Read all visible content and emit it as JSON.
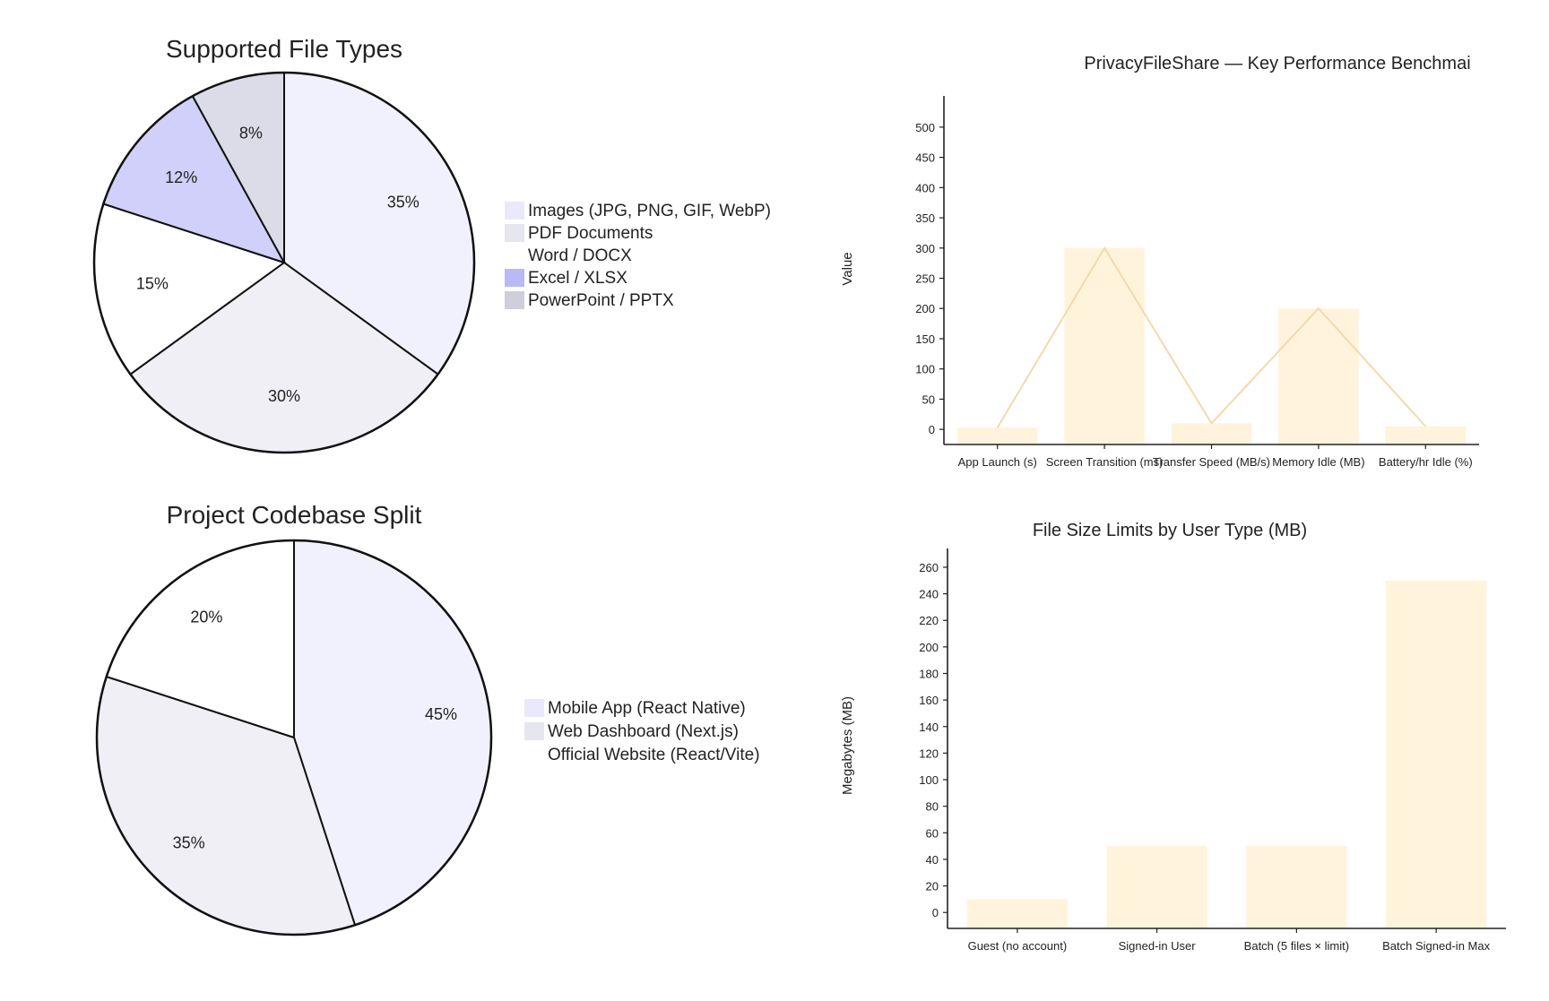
{
  "chart_data": [
    {
      "type": "pie",
      "title": "Supported File Types",
      "labels": [
        "Images (JPG, PNG, GIF, WebP)",
        "PDF Documents",
        "Word / DOCX",
        "Excel / XLSX",
        "PowerPoint / PPTX"
      ],
      "values": [
        35,
        30,
        15,
        12,
        8
      ],
      "value_labels": [
        "35%",
        "30%",
        "15%",
        "12%",
        "8%"
      ],
      "colors": [
        "#f1f1fd",
        "#efeff5",
        "#ffffff",
        "#d0d0fb",
        "#dcdce8"
      ],
      "legend_colors": [
        "#e9e9fb",
        "#e6e6ee",
        "#ffffff",
        "#b9b9f5",
        "#cfcfdb"
      ],
      "legend": "right"
    },
    {
      "type": "bar",
      "title": "PrivacyFileShare — Key Performance Benchmai",
      "categories": [
        "App Launch (s)",
        "Screen Transition (ms)",
        "Transfer Speed (MB/s)",
        "Memory Idle (MB)",
        "Battery/hr Idle (%)"
      ],
      "values": [
        3,
        300,
        10,
        200,
        5
      ],
      "line_overlay": [
        3,
        300,
        10,
        200,
        5
      ],
      "ylabel": "Value",
      "ylim": [
        -25,
        525
      ],
      "yticks": [
        0,
        50,
        100,
        150,
        200,
        250,
        300,
        350,
        400,
        450,
        500
      ],
      "bar_color": "#fff3dc",
      "line_color": "#f3d9ad",
      "grid": false
    },
    {
      "type": "pie",
      "title": "Project Codebase Split",
      "labels": [
        "Mobile App (React Native)",
        "Web Dashboard (Next.js)",
        "Official Website (React/Vite)"
      ],
      "values": [
        45,
        35,
        20
      ],
      "value_labels": [
        "45%",
        "35%",
        "20%"
      ],
      "colors": [
        "#f1f1fd",
        "#efeff5",
        "#ffffff"
      ],
      "legend_colors": [
        "#e9e9fb",
        "#e6e6ee",
        "#ffffff"
      ],
      "legend": "right"
    },
    {
      "type": "bar",
      "title": "File Size Limits by User Type (MB)",
      "categories": [
        "Guest (no account)",
        "Signed-in User",
        "Batch (5 files × limit)",
        "Batch Signed-in Max"
      ],
      "values": [
        10,
        50,
        50,
        250
      ],
      "ylabel": "Megabytes (MB)",
      "ylim": [
        -12,
        262
      ],
      "yticks": [
        0,
        20,
        40,
        60,
        80,
        100,
        120,
        140,
        160,
        180,
        200,
        220,
        240,
        260
      ],
      "bar_color": "#fff3dc",
      "grid": false
    }
  ]
}
